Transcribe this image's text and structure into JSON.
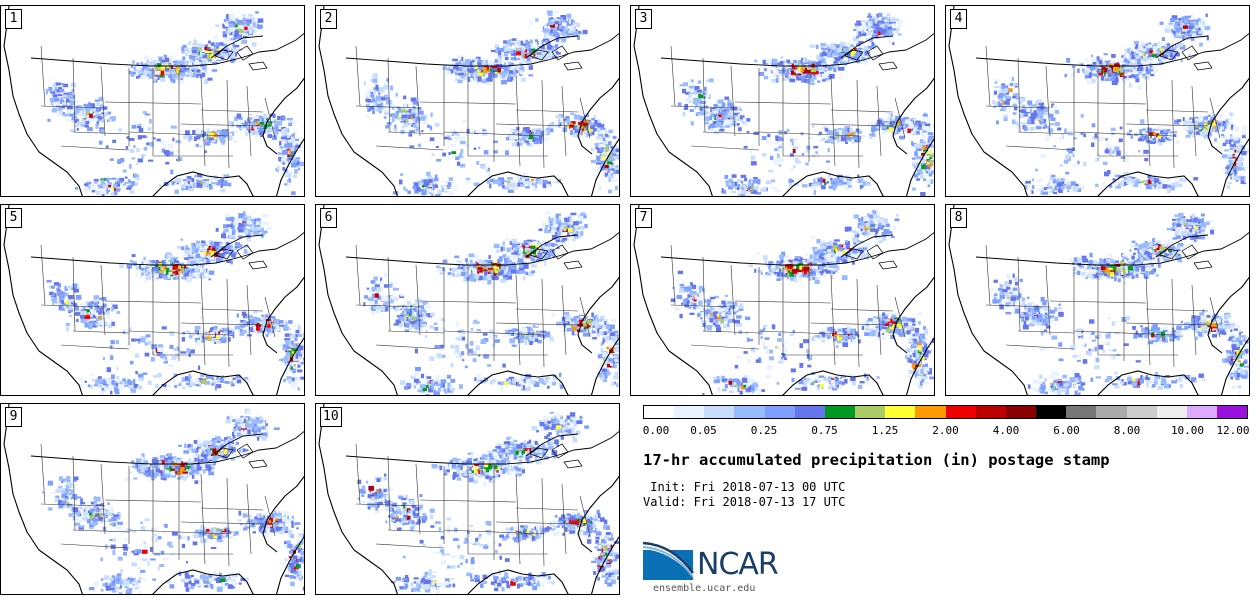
{
  "panels": [
    {
      "label": "1"
    },
    {
      "label": "2"
    },
    {
      "label": "3"
    },
    {
      "label": "4"
    },
    {
      "label": "5"
    },
    {
      "label": "6"
    },
    {
      "label": "7"
    },
    {
      "label": "8"
    },
    {
      "label": "9"
    },
    {
      "label": "10"
    }
  ],
  "legend": {
    "ticks": [
      "0.00",
      "0.05",
      "0.25",
      "0.75",
      "1.25",
      "2.00",
      "4.00",
      "6.00",
      "8.00",
      "10.00",
      "12.00"
    ],
    "colors": [
      "#ffffff",
      "#e9f2ff",
      "#c9ddff",
      "#99bbff",
      "#7f9fff",
      "#6677ee",
      "#009922",
      "#aacc66",
      "#ffff33",
      "#ff9900",
      "#ee0000",
      "#bb0000",
      "#880000",
      "#000000",
      "#777777",
      "#aaaaaa",
      "#cccccc",
      "#eeeeee",
      "#ddaaff",
      "#9911dd"
    ]
  },
  "title": "17-hr accumulated precipitation (in) postage stamp",
  "init_line": " Init: Fri 2018-07-13 00 UTC",
  "valid_line": "Valid: Fri 2018-07-13 17 UTC",
  "logo": {
    "text": "NCAR",
    "url": "ensemble.ucar.edu"
  }
}
